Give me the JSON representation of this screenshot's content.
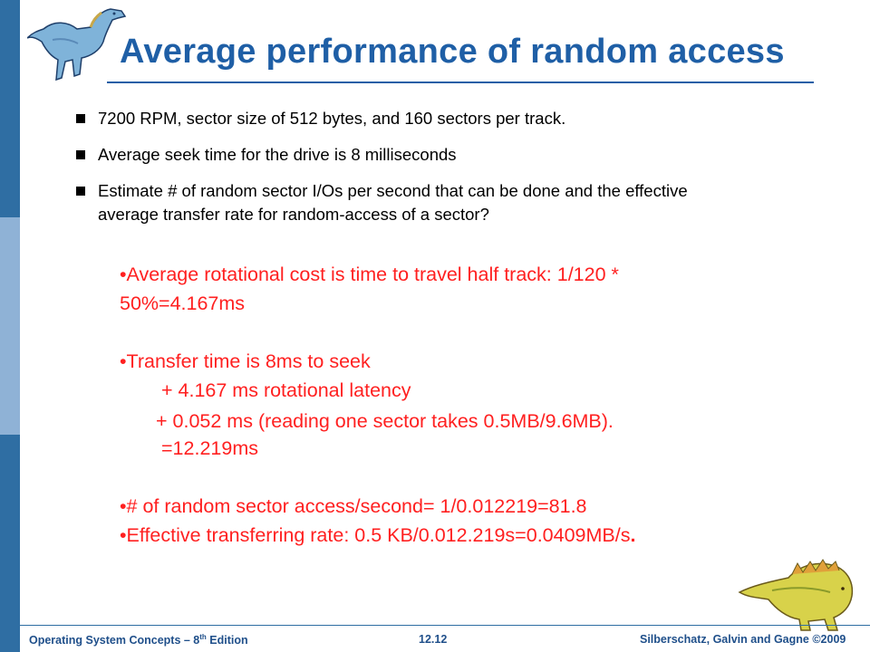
{
  "slide": {
    "title": "Average performance of random access",
    "bullets": [
      "7200 RPM, sector size of 512 bytes, and 160 sectors per track.",
      "Average seek time for the drive is 8 milliseconds",
      "Estimate # of random sector I/Os per second that can be done and the effective average transfer rate for  random-access of a sector?"
    ],
    "answer": {
      "line1": "•Average rotational cost is time to travel half track:  1/120 *",
      "line2": "50%=4.167ms",
      "line3": "•Transfer time is 8ms to seek",
      "line4": "+ 4.167 ms rotational latency",
      "line5": "+ 0.052 ms (reading one sector takes  0.5MB/9.6MB).",
      "line6": "=12.219ms",
      "line7": "•# of random sector access/second= 1/0.012219=81.8",
      "line8": "•Effective transferring rate: 0.5 KB/0.012.219s=0.0409MB/s",
      "line8_end": "."
    }
  },
  "footer": {
    "left_prefix": "Operating System Concepts – 8",
    "left_sup": "th",
    "left_suffix": " Edition",
    "center": "12.12",
    "right": "Silberschatz, Galvin and Gagne ©2009"
  },
  "colors": {
    "title": "#1f5fa6",
    "answer": "#ff2020",
    "strip_dark": "#2f6ea3",
    "strip_light": "#8fb2d6"
  }
}
